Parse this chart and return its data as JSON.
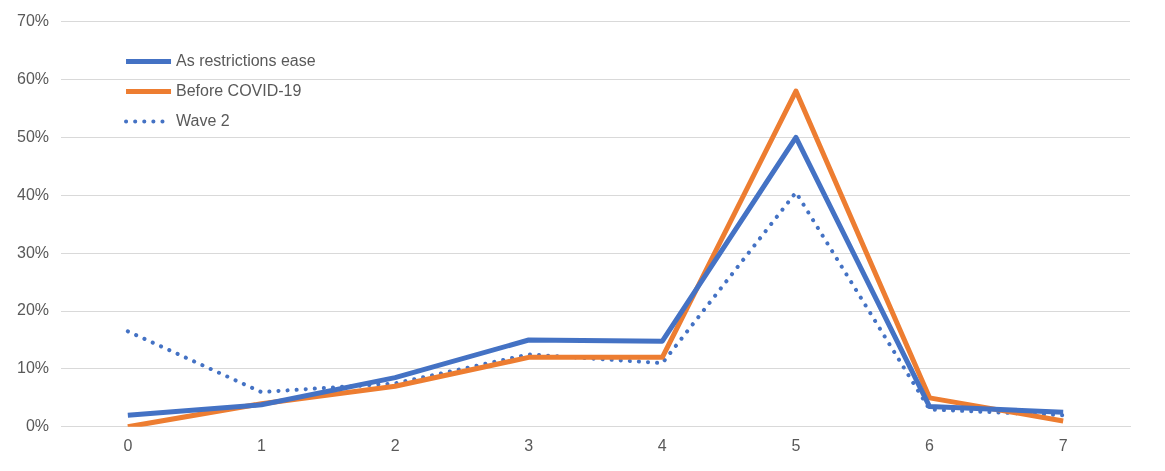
{
  "chart_data": {
    "type": "line",
    "categories": [
      "0",
      "1",
      "2",
      "3",
      "4",
      "5",
      "6",
      "7"
    ],
    "series": [
      {
        "name": "As restrictions ease",
        "color": "#4472c4",
        "values": [
          2,
          3.8,
          8.5,
          15,
          14.8,
          50,
          3.5,
          2.5
        ]
      },
      {
        "name": "Before COVID-19",
        "color": "#ed7d31",
        "values": [
          0,
          4,
          7,
          12,
          12,
          58,
          5,
          1
        ]
      },
      {
        "name": "Wave 2",
        "color": "#4472c4",
        "line_style": "dotted",
        "values": [
          16.5,
          6,
          7.5,
          12.5,
          11,
          40.5,
          3,
          2
        ]
      }
    ],
    "ylim": [
      0,
      70
    ],
    "yticks": [
      {
        "value": 0,
        "label": "0%"
      },
      {
        "value": 10,
        "label": "10%"
      },
      {
        "value": 20,
        "label": "20%"
      },
      {
        "value": 30,
        "label": "30%"
      },
      {
        "value": 40,
        "label": "40%"
      },
      {
        "value": 50,
        "label": "50%"
      },
      {
        "value": 60,
        "label": "60%"
      },
      {
        "value": 70,
        "label": "70%"
      }
    ],
    "grid": "y",
    "legend": "top left",
    "marker": "none",
    "line_style": "solid"
  }
}
